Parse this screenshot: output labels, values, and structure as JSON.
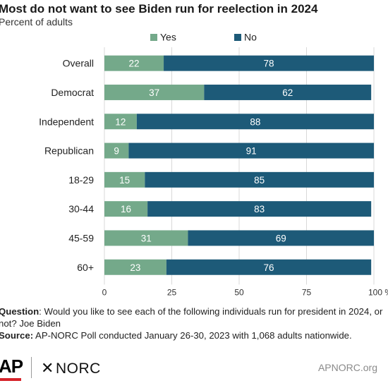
{
  "chart_data": {
    "type": "bar",
    "stacked": true,
    "orientation": "horizontal",
    "title": "Most do not want to see Biden run for reelection in 2024",
    "subtitle": "Percent of adults",
    "categories": [
      "Overall",
      "Democrat",
      "Independent",
      "Republican",
      "18-29",
      "30-44",
      "45-59",
      "60+"
    ],
    "series": [
      {
        "name": "Yes",
        "color": "#74a98a",
        "values": [
          22,
          37,
          12,
          9,
          15,
          16,
          31,
          23
        ]
      },
      {
        "name": "No",
        "color": "#1d5a78",
        "values": [
          78,
          62,
          88,
          91,
          85,
          83,
          69,
          76
        ]
      }
    ],
    "xlim": [
      0,
      100
    ],
    "xticks": [
      "0",
      "25",
      "50",
      "75",
      "100 %"
    ],
    "legend_position": "top",
    "grid": true
  },
  "notes": {
    "question_label": "Question",
    "question_text": ": Would you like to see each of the following individuals run for president in 2024, or not? Joe Biden",
    "source_label": "Source:",
    "source_text": " AP-NORC Poll conducted January 26-30, 2023 with 1,068 adults nationwide."
  },
  "footer": {
    "ap_logo": "AP",
    "norc_logo": "NORC",
    "url": "APNORC.org"
  }
}
